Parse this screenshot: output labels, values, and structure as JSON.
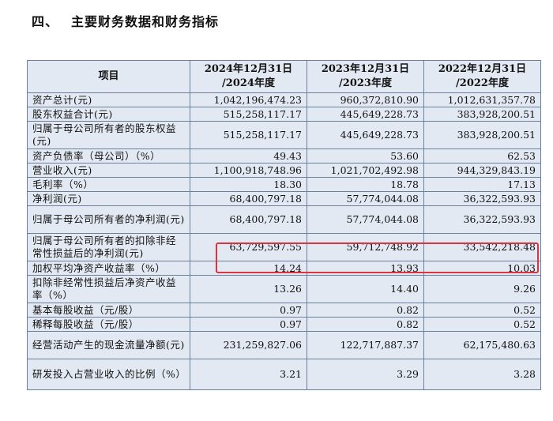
{
  "heading": {
    "number": "四、",
    "title": "主要财务数据和财务指标"
  },
  "table": {
    "header": {
      "item": "项目",
      "cols": [
        {
          "line1": "2024年12月31日",
          "line2": "/2024年度"
        },
        {
          "line1": "2023年12月31日",
          "line2": "/2023年度"
        },
        {
          "line1": "2022年12月31日",
          "line2": "/2022年度"
        }
      ]
    },
    "rows": [
      {
        "label": "资产总计(元)",
        "v2024": "1,042,196,474.23",
        "v2023": "960,372,810.90",
        "v2022": "1,012,631,357.78"
      },
      {
        "label": "股东权益合计(元)",
        "v2024": "515,258,117.17",
        "v2023": "445,649,228.73",
        "v2022": "383,928,200.51"
      },
      {
        "label": "归属于母公司所有者的股东权益(元)",
        "v2024": "515,258,117.17",
        "v2023": "445,649,228.73",
        "v2022": "383,928,200.51"
      },
      {
        "label": "资产负债率（母公司）（%）",
        "v2024": "49.43",
        "v2023": "53.60",
        "v2022": "62.53"
      },
      {
        "label": "营业收入(元)",
        "v2024": "1,100,918,748.96",
        "v2023": "1,021,702,492.98",
        "v2022": "944,329,843.19"
      },
      {
        "label": "毛利率（%）",
        "v2024": "18.30",
        "v2023": "18.78",
        "v2022": "17.13"
      },
      {
        "label": "净利润(元)",
        "v2024": "68,400,797.18",
        "v2023": "57,774,044.08",
        "v2022": "36,322,593.93"
      },
      {
        "label": "归属于母公司所有者的净利润(元)",
        "v2024": "68,400,797.18",
        "v2023": "57,774,044.08",
        "v2022": "36,322,593.93"
      },
      {
        "label": "归属于母公司所有者的扣除非经常性损益后的净利润(元)",
        "v2024": "63,729,597.55",
        "v2023": "59,712,748.92",
        "v2022": "33,542,218.48"
      },
      {
        "label": "加权平均净资产收益率（%）",
        "v2024": "14.24",
        "v2023": "13.93",
        "v2022": "10.03"
      },
      {
        "label": "扣除非经常性损益后净资产收益率（%）",
        "v2024": "13.26",
        "v2023": "14.40",
        "v2022": "9.26"
      },
      {
        "label": "基本每股收益（元/股）",
        "v2024": "0.97",
        "v2023": "0.82",
        "v2022": "0.52"
      },
      {
        "label": "稀释每股收益（元/股）",
        "v2024": "0.97",
        "v2023": "0.82",
        "v2022": "0.52"
      },
      {
        "label": "经营活动产生的现金流量净额(元)",
        "v2024": "231,259,827.06",
        "v2023": "122,717,887.37",
        "v2022": "62,175,480.63"
      },
      {
        "label": "研发投入占营业收入的比例（%）",
        "v2024": "3.21",
        "v2023": "3.29",
        "v2022": "3.28"
      }
    ]
  },
  "colors": {
    "cell_bg": "#e3e9f3",
    "border": "#6b7e9c",
    "highlight": "#d9343f"
  }
}
